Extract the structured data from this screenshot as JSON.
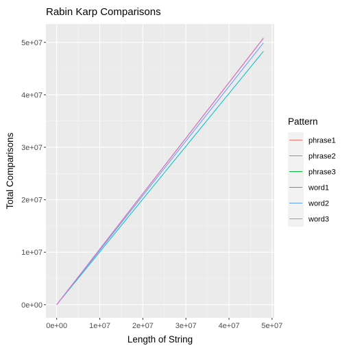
{
  "chart_data": {
    "type": "line",
    "title": "Rabin Karp Comparisons",
    "xlabel": "Length of String",
    "ylabel": "Total Comparisons",
    "xlim": [
      -2500000,
      50500000
    ],
    "ylim": [
      -2500000,
      53500000
    ],
    "x_ticks": [
      0,
      10000000,
      20000000,
      30000000,
      40000000,
      50000000
    ],
    "x_tick_labels": [
      "0e+00",
      "1e+07",
      "2e+07",
      "3e+07",
      "4e+07",
      "5e+07"
    ],
    "y_ticks": [
      0,
      10000000,
      20000000,
      30000000,
      40000000,
      50000000
    ],
    "y_tick_labels": [
      "0e+00",
      "1e+07",
      "2e+07",
      "3e+07",
      "4e+07",
      "5e+07"
    ],
    "grid": true,
    "legend_title": "Pattern",
    "legend_position": "right",
    "series": [
      {
        "name": "phrase1",
        "color": "#F8766D",
        "x": [
          0,
          48000000
        ],
        "y": [
          0,
          50800000
        ]
      },
      {
        "name": "phrase2",
        "color": "#B79F00",
        "x": [
          0,
          48000000
        ],
        "y": [
          0,
          50800000
        ]
      },
      {
        "name": "phrase3",
        "color": "#00BA38",
        "x": [
          0,
          48000000
        ],
        "y": [
          0,
          50800000
        ]
      },
      {
        "name": "word1",
        "color": "#00BFC4",
        "x": [
          0,
          48000000
        ],
        "y": [
          0,
          48300000
        ]
      },
      {
        "name": "word2",
        "color": "#619CFF",
        "x": [
          0,
          48000000
        ],
        "y": [
          0,
          49900000
        ]
      },
      {
        "name": "word3",
        "color": "#F564E3",
        "x": [
          0,
          48000000
        ],
        "y": [
          0,
          50800000
        ]
      }
    ]
  }
}
